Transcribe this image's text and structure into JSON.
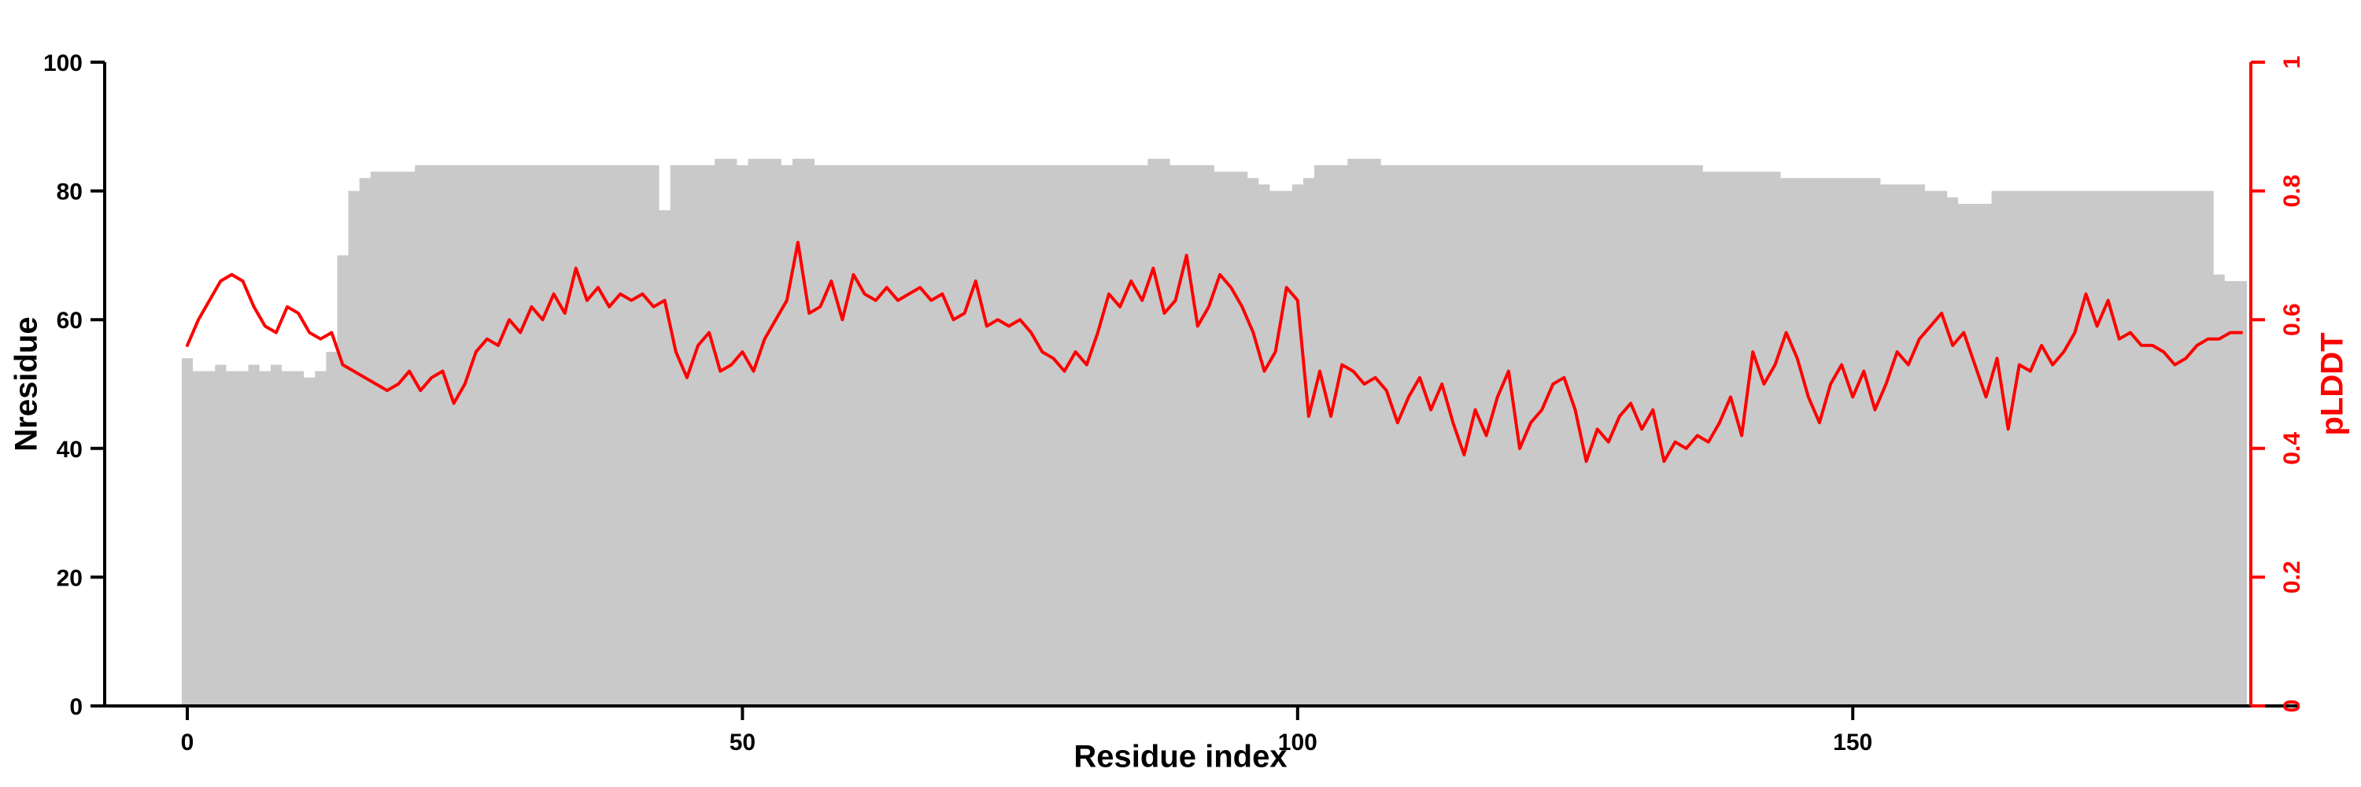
{
  "page": {
    "background": "#ffffff"
  },
  "chart_data": {
    "type": "area+line",
    "title": "",
    "xlabel": "Residue index",
    "ylabel_left": "Nresidue",
    "ylabel_right": "pLDDT",
    "x_start": 0,
    "x_step": 1,
    "x_ticks": [
      0,
      50,
      100,
      150
    ],
    "left_axis": {
      "range": [
        0,
        100
      ],
      "ticks": [
        0,
        20,
        40,
        60,
        80,
        100
      ],
      "color": "#000000"
    },
    "right_axis": {
      "range": [
        0,
        1
      ],
      "ticks": [
        0,
        0.2,
        0.4,
        0.6,
        0.8,
        1
      ],
      "tick_labels": [
        "0",
        "0.2",
        "0.4",
        "0.6",
        "0.8",
        "1"
      ],
      "color": "#ff0000"
    },
    "grid": false,
    "legend": "none",
    "series": [
      {
        "name": "Nresidue",
        "type": "step-area",
        "axis": "left",
        "color": "#c9c9c9",
        "values": [
          54,
          52,
          52,
          53,
          52,
          52,
          53,
          52,
          53,
          52,
          52,
          51,
          52,
          55,
          70,
          80,
          82,
          83,
          83,
          83,
          83,
          84,
          84,
          84,
          84,
          84,
          84,
          84,
          84,
          84,
          84,
          84,
          84,
          84,
          84,
          84,
          84,
          84,
          84,
          84,
          84,
          84,
          84,
          77,
          84,
          84,
          84,
          84,
          85,
          85,
          84,
          85,
          85,
          85,
          84,
          85,
          85,
          84,
          84,
          84,
          84,
          84,
          84,
          84,
          84,
          84,
          84,
          84,
          84,
          84,
          84,
          84,
          84,
          84,
          84,
          84,
          84,
          84,
          84,
          84,
          84,
          84,
          84,
          84,
          84,
          84,
          84,
          85,
          85,
          84,
          84,
          84,
          84,
          83,
          83,
          83,
          82,
          81,
          80,
          80,
          81,
          82,
          84,
          84,
          84,
          85,
          85,
          85,
          84,
          84,
          84,
          84,
          84,
          84,
          84,
          84,
          84,
          84,
          84,
          84,
          84,
          84,
          84,
          84,
          84,
          84,
          84,
          84,
          84,
          84,
          84,
          84,
          84,
          84,
          84,
          84,
          84,
          83,
          83,
          83,
          83,
          83,
          83,
          83,
          82,
          82,
          82,
          82,
          82,
          82,
          82,
          82,
          82,
          81,
          81,
          81,
          81,
          80,
          80,
          79,
          78,
          78,
          78,
          80,
          80,
          80,
          80,
          80,
          80,
          80,
          80,
          80,
          80,
          80,
          80,
          80,
          80,
          80,
          80,
          80,
          80,
          80,
          80,
          67,
          66,
          66
        ]
      },
      {
        "name": "pLDDT",
        "type": "line",
        "axis": "right",
        "color": "#ff0000",
        "values": [
          0.56,
          0.6,
          0.63,
          0.66,
          0.67,
          0.66,
          0.62,
          0.59,
          0.58,
          0.62,
          0.61,
          0.58,
          0.57,
          0.58,
          0.53,
          0.52,
          0.51,
          0.5,
          0.49,
          0.5,
          0.52,
          0.49,
          0.51,
          0.52,
          0.47,
          0.5,
          0.55,
          0.57,
          0.56,
          0.6,
          0.58,
          0.62,
          0.6,
          0.64,
          0.61,
          0.68,
          0.63,
          0.65,
          0.62,
          0.64,
          0.63,
          0.64,
          0.62,
          0.63,
          0.55,
          0.51,
          0.56,
          0.58,
          0.52,
          0.53,
          0.55,
          0.52,
          0.57,
          0.6,
          0.63,
          0.72,
          0.61,
          0.62,
          0.66,
          0.6,
          0.67,
          0.64,
          0.63,
          0.65,
          0.63,
          0.64,
          0.65,
          0.63,
          0.64,
          0.6,
          0.61,
          0.66,
          0.59,
          0.6,
          0.59,
          0.6,
          0.58,
          0.55,
          0.54,
          0.52,
          0.55,
          0.53,
          0.58,
          0.64,
          0.62,
          0.66,
          0.63,
          0.68,
          0.61,
          0.63,
          0.7,
          0.59,
          0.62,
          0.67,
          0.65,
          0.62,
          0.58,
          0.52,
          0.55,
          0.65,
          0.63,
          0.45,
          0.52,
          0.45,
          0.53,
          0.52,
          0.5,
          0.51,
          0.49,
          0.44,
          0.48,
          0.51,
          0.46,
          0.5,
          0.44,
          0.39,
          0.46,
          0.42,
          0.48,
          0.52,
          0.4,
          0.44,
          0.46,
          0.5,
          0.51,
          0.46,
          0.38,
          0.43,
          0.41,
          0.45,
          0.47,
          0.43,
          0.46,
          0.38,
          0.41,
          0.4,
          0.42,
          0.41,
          0.44,
          0.48,
          0.42,
          0.55,
          0.5,
          0.53,
          0.58,
          0.54,
          0.48,
          0.44,
          0.5,
          0.53,
          0.48,
          0.52,
          0.46,
          0.5,
          0.55,
          0.53,
          0.57,
          0.59,
          0.61,
          0.56,
          0.58,
          0.53,
          0.48,
          0.54,
          0.43,
          0.53,
          0.52,
          0.56,
          0.53,
          0.55,
          0.58,
          0.64,
          0.59,
          0.63,
          0.57,
          0.58,
          0.56,
          0.56,
          0.55,
          0.53,
          0.54,
          0.56,
          0.57,
          0.57,
          0.58,
          0.58
        ]
      }
    ]
  }
}
